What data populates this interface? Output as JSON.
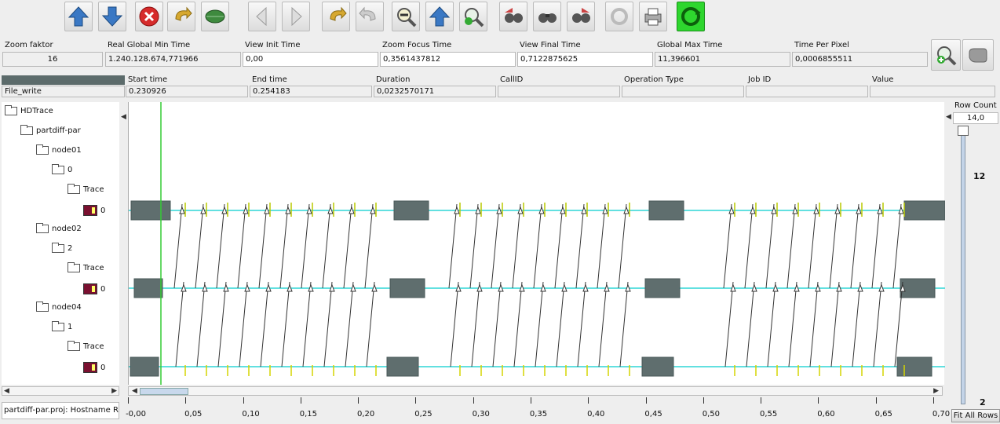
{
  "toolbar": {
    "buttons": [
      {
        "name": "scroll-up-button",
        "icon": "blue-up-arrow-icon"
      },
      {
        "name": "scroll-down-button",
        "icon": "blue-down-arrow-icon"
      },
      {
        "name": "close-button",
        "icon": "red-x-icon"
      },
      {
        "name": "undo-button",
        "icon": "yellow-undo-arrow-icon"
      },
      {
        "name": "leaf-button",
        "icon": "green-leaf-icon"
      },
      {
        "name": "step-left-button",
        "icon": "left-triangle-icon"
      },
      {
        "name": "step-right-button",
        "icon": "right-triangle-icon"
      },
      {
        "name": "back-button",
        "icon": "yellow-back-arrow-icon"
      },
      {
        "name": "forward-button",
        "icon": "gray-forward-arrow-icon"
      },
      {
        "name": "zoom-out-button",
        "icon": "zoom-out-icon"
      },
      {
        "name": "zoom-up-button",
        "icon": "blue-up-arrow-icon"
      },
      {
        "name": "zoom-in-button",
        "icon": "zoom-in-icon"
      },
      {
        "name": "find-prev-button",
        "icon": "binoculars-left-icon"
      },
      {
        "name": "find-button",
        "icon": "binoculars-icon"
      },
      {
        "name": "find-next-button",
        "icon": "binoculars-right-icon"
      },
      {
        "name": "refresh-button",
        "icon": "gray-refresh-icon"
      },
      {
        "name": "print-button",
        "icon": "printer-icon"
      },
      {
        "name": "sync-button",
        "icon": "green-sync-icon"
      }
    ]
  },
  "time_bar": {
    "zoom_faktor": {
      "label": "Zoom faktor",
      "value": "16"
    },
    "real_global_min_time": {
      "label": "Real Global Min Time",
      "value": "1.240.128.674,771966"
    },
    "view_init_time": {
      "label": "View  Init Time",
      "value": "0,00"
    },
    "zoom_focus_time": {
      "label": "Zoom Focus Time",
      "value": "0,3561437812"
    },
    "view_final_time": {
      "label": "View Final Time",
      "value": "0,7122875625"
    },
    "global_max_time": {
      "label": "Global Max Time",
      "value": "11,396601"
    },
    "time_per_pixel": {
      "label": "Time Per Pixel",
      "value": "0,0006855511"
    }
  },
  "event_bar": {
    "name": "File_write",
    "start_time": {
      "label": "Start time",
      "value": "0.230926"
    },
    "end_time": {
      "label": "End time",
      "value": "0.254183"
    },
    "duration": {
      "label": "Duration",
      "value": "0,0232570171"
    },
    "call_id": {
      "label": "CallID",
      "value": ""
    },
    "operation_type": {
      "label": "Operation Type",
      "value": ""
    },
    "job_id": {
      "label": "Job ID",
      "value": ""
    },
    "value": {
      "label": "Value",
      "value": ""
    }
  },
  "tree": {
    "items": [
      {
        "label": "HDTrace",
        "kind": "folder",
        "level": 0
      },
      {
        "label": "partdiff-par",
        "kind": "folder",
        "level": 1
      },
      {
        "label": "node01",
        "kind": "folder",
        "level": 2
      },
      {
        "label": "0",
        "kind": "folder",
        "level": 3
      },
      {
        "label": "Trace",
        "kind": "folder",
        "level": 4
      },
      {
        "label": "0",
        "kind": "leaf",
        "level": 5
      },
      {
        "label": "node02",
        "kind": "folder",
        "level": 2
      },
      {
        "label": "2",
        "kind": "folder",
        "level": 3
      },
      {
        "label": "Trace",
        "kind": "folder",
        "level": 4
      },
      {
        "label": "0",
        "kind": "leaf",
        "level": 5
      },
      {
        "label": "node04",
        "kind": "folder",
        "level": 2
      },
      {
        "label": "1",
        "kind": "folder",
        "level": 3
      },
      {
        "label": "Trace",
        "kind": "folder",
        "level": 4
      },
      {
        "label": "0",
        "kind": "leaf",
        "level": 5
      }
    ]
  },
  "status_text": "partdiff-par.proj: Hostname Ra",
  "row_count": {
    "label": "Row Count",
    "value": "14,0",
    "ticks": [
      "12",
      "2"
    ]
  },
  "fit_all_rows_label": "Fit All Rows",
  "time_axis": {
    "ticks": [
      "-0,00",
      "0,05",
      "0,10",
      "0,15",
      "0,20",
      "0,25",
      "0,30",
      "0,35",
      "0,40",
      "0,45",
      "0,50",
      "0,55",
      "0,60",
      "0,65",
      "0,70"
    ]
  },
  "colors": {
    "timeline_line": "#2fd6d6",
    "event_block": "#5f6e6e",
    "cursor_line": "#33cc33"
  }
}
